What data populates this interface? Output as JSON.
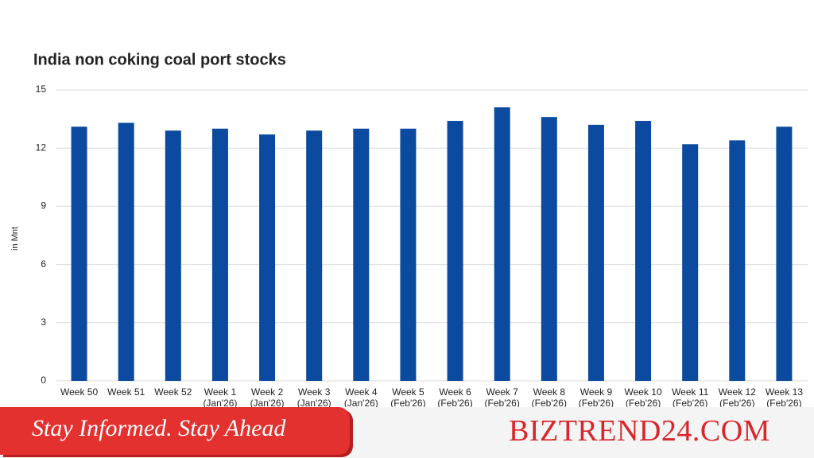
{
  "chart_data": {
    "type": "bar",
    "title": "India non coking coal port stocks",
    "y_label": "in Mnt",
    "categories": [
      [
        "Week 50"
      ],
      [
        "Week 51"
      ],
      [
        "Week 52"
      ],
      [
        "Week 1",
        "(Jan'26)"
      ],
      [
        "Week 2",
        "(Jan'26)"
      ],
      [
        "Week 3",
        "(Jan'26)"
      ],
      [
        "Week 4",
        "(Jan'26)"
      ],
      [
        "Week 5",
        "(Feb'26)"
      ],
      [
        "Week 6",
        "(Feb'26)"
      ],
      [
        "Week 7",
        "(Feb'26)"
      ],
      [
        "Week 8",
        "(Feb'26)"
      ],
      [
        "Week 9",
        "(Feb'26)"
      ],
      [
        "Week 10",
        "(Feb'26)"
      ],
      [
        "Week 11",
        "(Feb'26)"
      ],
      [
        "Week 12",
        "(Feb'26)"
      ],
      [
        "Week 13",
        "(Feb'26)"
      ]
    ],
    "values": [
      13.1,
      13.3,
      12.9,
      13.0,
      12.7,
      12.9,
      13.0,
      13.0,
      13.4,
      14.1,
      13.6,
      13.2,
      13.4,
      12.2,
      12.4,
      13.1
    ],
    "color": "#0b4a9e",
    "ylim": [
      0,
      15
    ],
    "yticks": [
      0,
      3,
      6,
      9,
      12,
      15
    ],
    "grid": true
  },
  "banner": {
    "tagline": "Stay Informed. Stay Ahead",
    "brand": "BIZTREND24.COM"
  }
}
